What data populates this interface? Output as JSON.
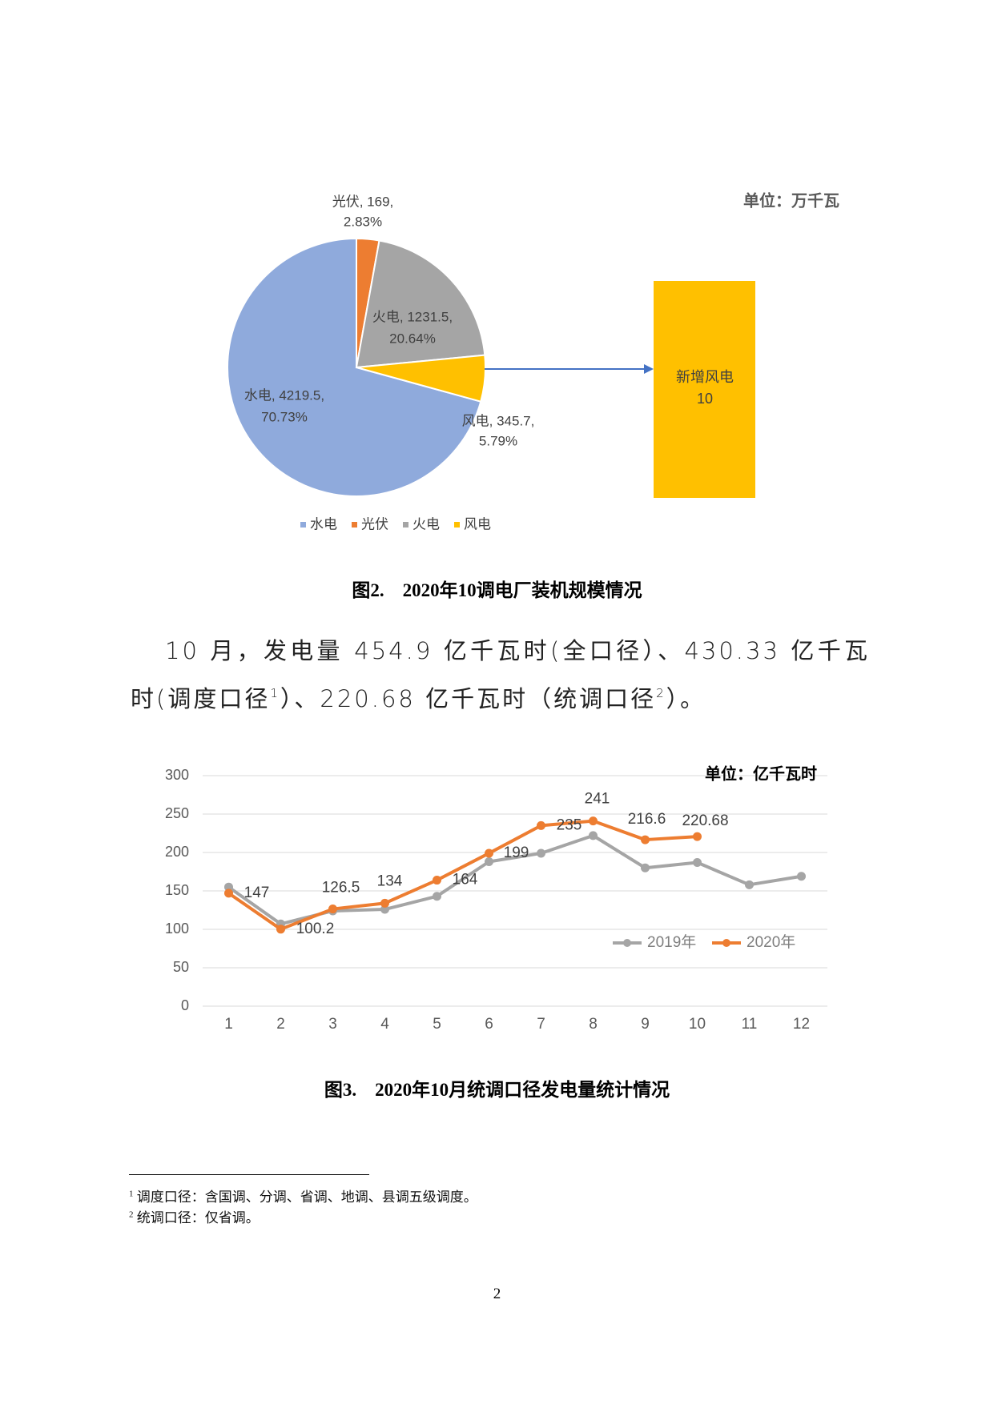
{
  "chart_data": [
    {
      "type": "pie",
      "categories": [
        "水电",
        "光伏",
        "火电",
        "风电"
      ],
      "values": [
        4219.5,
        169,
        1231.5,
        345.7
      ],
      "value_labels": [
        "水电, 4219.5,",
        "光伏, 169,",
        "火电, 1231.5,",
        "风电, 345.7,"
      ],
      "percent_labels": [
        "70.73%",
        "2.83%",
        "20.64%",
        "5.79%"
      ],
      "colors": [
        "#8faadc",
        "#ed7d31",
        "#a5a5a5",
        "#ffc000"
      ],
      "unit": "单位：万千瓦",
      "annotation": {
        "label": "新增风电",
        "value": 10,
        "color": "#ffc000",
        "arrow_color": "#4472c4"
      }
    },
    {
      "type": "line",
      "categories": [
        "1",
        "2",
        "3",
        "4",
        "5",
        "6",
        "7",
        "8",
        "9",
        "10",
        "11",
        "12"
      ],
      "series": [
        {
          "name": "2019年",
          "color": "#a5a5a5",
          "values": [
            155,
            107,
            124,
            126,
            143,
            188,
            199,
            222,
            180,
            187,
            158,
            169
          ]
        },
        {
          "name": "2020年",
          "color": "#ed7d31",
          "values": [
            147,
            100.2,
            126.5,
            134,
            164,
            199,
            235,
            241,
            216.6,
            220.68,
            null,
            null
          ],
          "data_labels": true
        }
      ],
      "ylim": [
        0,
        300
      ],
      "yticks": [
        0,
        50,
        100,
        150,
        200,
        250,
        300
      ],
      "grid": true,
      "unit": "单位：亿千瓦时"
    }
  ],
  "document": {
    "caption_1": "图2.　2020年10调电厂装机规模情况",
    "paragraph": [
      {
        "text": "10 月，发电量 454.9 亿千瓦时(全口径）、430.33 亿千瓦时(调度口径"
      },
      {
        "sup": "1"
      },
      {
        "text": "）、220.68 亿千瓦时（统调口径"
      },
      {
        "sup": "2"
      },
      {
        "text": "）。"
      }
    ],
    "caption_2": "图3.　2020年10月统调口径发电量统计情况",
    "footnotes": [
      {
        "mark": "1",
        "text": "调度口径：含国调、分调、省调、地调、县调五级调度。"
      },
      {
        "mark": "2",
        "text": "统调口径：仅省调。"
      }
    ],
    "page_number": "2"
  }
}
